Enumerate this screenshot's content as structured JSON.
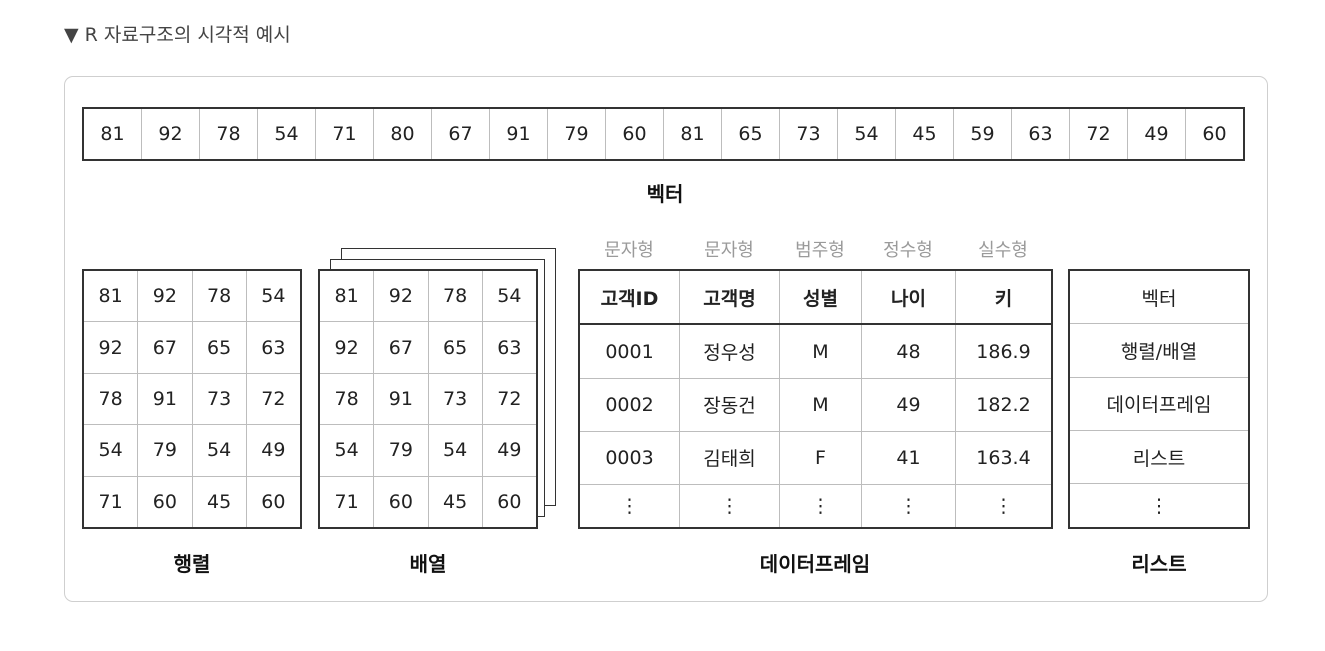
{
  "heading": "▼ R 자료구조의 시각적 예시",
  "vector": {
    "values": [
      "81",
      "92",
      "78",
      "54",
      "71",
      "80",
      "67",
      "91",
      "79",
      "60",
      "81",
      "65",
      "73",
      "54",
      "45",
      "59",
      "63",
      "72",
      "49",
      "60"
    ],
    "label": "벡터"
  },
  "matrix": {
    "rows": [
      [
        "81",
        "92",
        "78",
        "54"
      ],
      [
        "92",
        "67",
        "65",
        "63"
      ],
      [
        "78",
        "91",
        "73",
        "72"
      ],
      [
        "54",
        "79",
        "54",
        "49"
      ],
      [
        "71",
        "60",
        "45",
        "60"
      ]
    ],
    "label": "행렬"
  },
  "array": {
    "rows": [
      [
        "81",
        "92",
        "78",
        "54"
      ],
      [
        "92",
        "67",
        "65",
        "63"
      ],
      [
        "78",
        "91",
        "73",
        "72"
      ],
      [
        "54",
        "79",
        "54",
        "49"
      ],
      [
        "71",
        "60",
        "45",
        "60"
      ]
    ],
    "label": "배열"
  },
  "dataframe": {
    "types": [
      "문자형",
      "문자형",
      "범주형",
      "정수형",
      "실수형"
    ],
    "columns": [
      "고객ID",
      "고객명",
      "성별",
      "나이",
      "키"
    ],
    "rows": [
      [
        "0001",
        "정우성",
        "M",
        "48",
        "186.9"
      ],
      [
        "0002",
        "장동건",
        "M",
        "49",
        "182.2"
      ],
      [
        "0003",
        "김태희",
        "F",
        "41",
        "163.4"
      ],
      [
        "⋮",
        "⋮",
        "⋮",
        "⋮",
        "⋮"
      ]
    ],
    "label": "데이터프레임"
  },
  "list": {
    "items": [
      "벡터",
      "행렬/배열",
      "데이터프레임",
      "리스트",
      "⋮"
    ],
    "label": "리스트"
  }
}
